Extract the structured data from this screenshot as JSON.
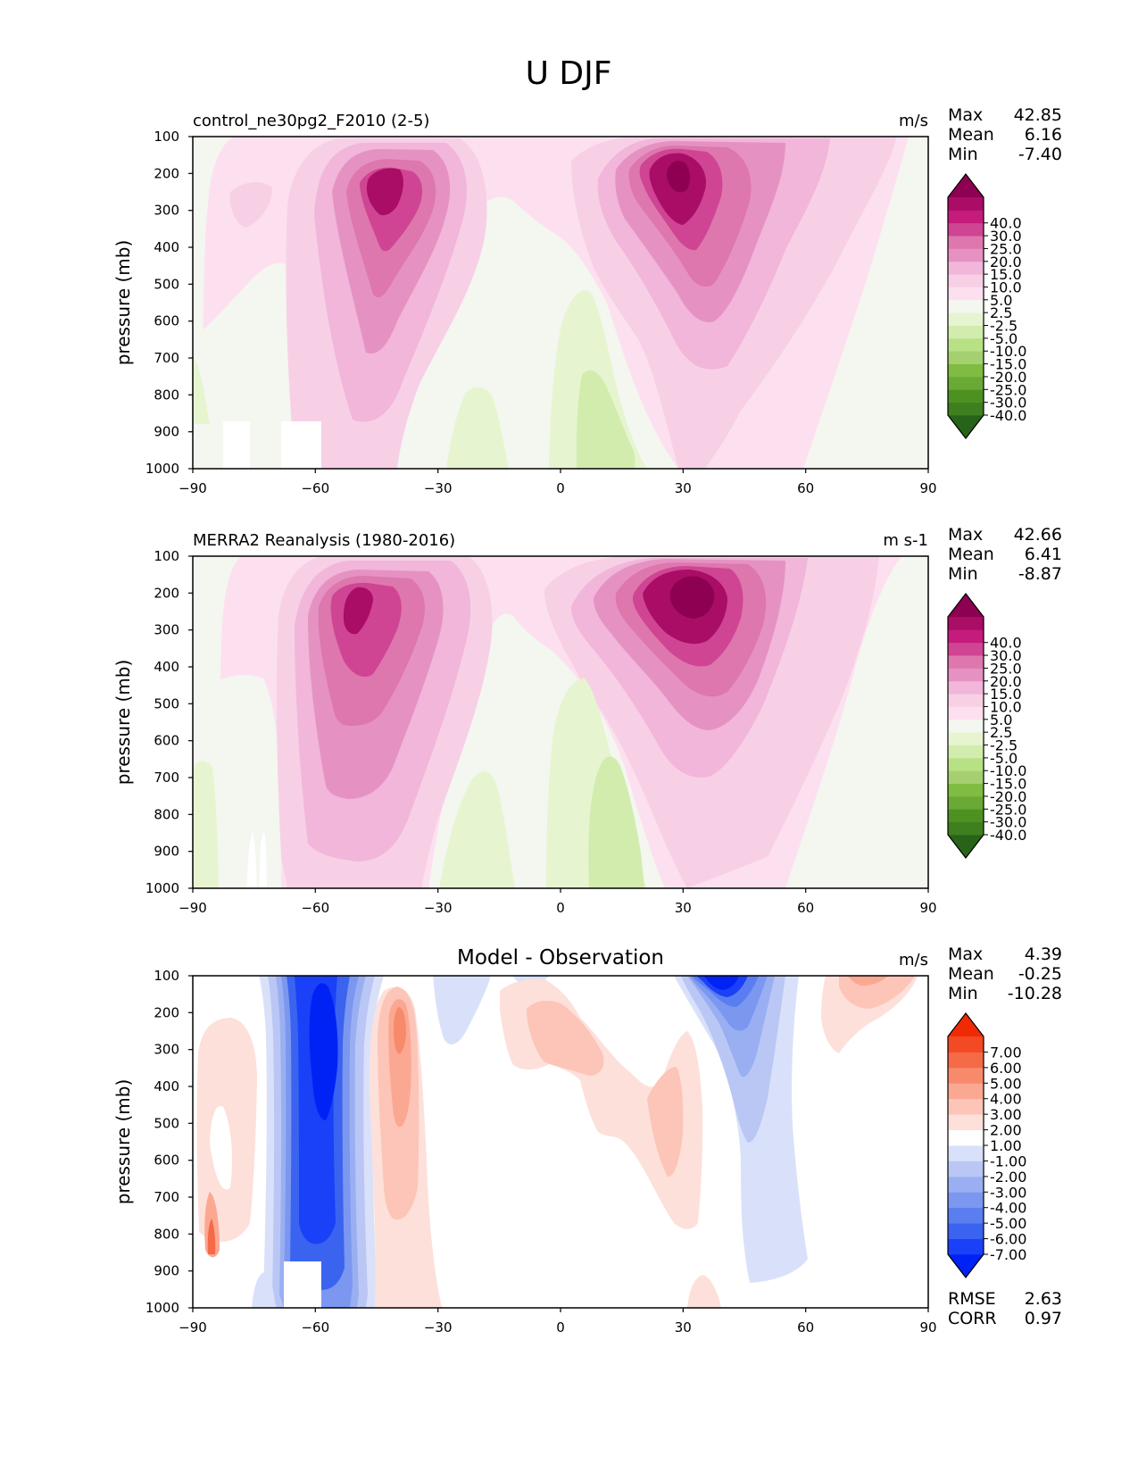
{
  "figure": {
    "title": "U DJF"
  },
  "chart_data": [
    {
      "type": "heatmap",
      "title": "control_ne30pg2_F2010 (2-5)",
      "units": "m/s",
      "ylabel": "pressure (mb)",
      "xlim": [
        -90,
        90
      ],
      "ylim": [
        1000,
        100
      ],
      "x_ticks": [
        "−90",
        "−60",
        "−30",
        "0",
        "30",
        "60",
        "90"
      ],
      "y_ticks": [
        "100",
        "200",
        "300",
        "400",
        "500",
        "600",
        "700",
        "800",
        "900",
        "1000"
      ],
      "stats": [
        {
          "label": "Max",
          "value": "42.85"
        },
        {
          "label": "Mean",
          "value": "6.16"
        },
        {
          "label": "Min",
          "value": "-7.40"
        }
      ],
      "colorbar": {
        "levels": [
          "-40.0",
          "-30.0",
          "-25.0",
          "-20.0",
          "-15.0",
          "-10.0",
          "-5.0",
          "-2.5",
          "2.5",
          "5.0",
          "10.0",
          "15.0",
          "20.0",
          "25.0",
          "30.0",
          "40.0"
        ],
        "colors": [
          "#276419",
          "#3f7f20",
          "#4d9221",
          "#6aa935",
          "#7fbc41",
          "#a5d06f",
          "#b8e186",
          "#d2ecad",
          "#e6f5d0",
          "#f4f6f0",
          "#fde0ef",
          "#f7d0e6",
          "#f1b6da",
          "#e592c3",
          "#de77ae",
          "#cf4593",
          "#c51b7d",
          "#a90d66",
          "#8e0152"
        ]
      }
    },
    {
      "type": "heatmap",
      "title": "MERRA2 Reanalysis (1980-2016)",
      "units": "m s-1",
      "ylabel": "pressure (mb)",
      "xlim": [
        -90,
        90
      ],
      "ylim": [
        1000,
        100
      ],
      "x_ticks": [
        "−90",
        "−60",
        "−30",
        "0",
        "30",
        "60",
        "90"
      ],
      "y_ticks": [
        "100",
        "200",
        "300",
        "400",
        "500",
        "600",
        "700",
        "800",
        "900",
        "1000"
      ],
      "stats": [
        {
          "label": "Max",
          "value": "42.66"
        },
        {
          "label": "Mean",
          "value": "6.41"
        },
        {
          "label": "Min",
          "value": "-8.87"
        }
      ],
      "colorbar": {
        "levels": [
          "-40.0",
          "-30.0",
          "-25.0",
          "-20.0",
          "-15.0",
          "-10.0",
          "-5.0",
          "-2.5",
          "2.5",
          "5.0",
          "10.0",
          "15.0",
          "20.0",
          "25.0",
          "30.0",
          "40.0"
        ],
        "colors": [
          "#276419",
          "#3f7f20",
          "#4d9221",
          "#6aa935",
          "#7fbc41",
          "#a5d06f",
          "#b8e186",
          "#d2ecad",
          "#e6f5d0",
          "#f4f6f0",
          "#fde0ef",
          "#f7d0e6",
          "#f1b6da",
          "#e592c3",
          "#de77ae",
          "#cf4593",
          "#c51b7d",
          "#a90d66",
          "#8e0152"
        ]
      }
    },
    {
      "type": "heatmap",
      "title": "Model - Observation",
      "units": "m/s",
      "ylabel": "pressure (mb)",
      "xlim": [
        -90,
        90
      ],
      "ylim": [
        1000,
        100
      ],
      "x_ticks": [
        "−90",
        "−60",
        "−30",
        "0",
        "30",
        "60",
        "90"
      ],
      "y_ticks": [
        "100",
        "200",
        "300",
        "400",
        "500",
        "600",
        "700",
        "800",
        "900",
        "1000"
      ],
      "stats": [
        {
          "label": "Max",
          "value": "4.39"
        },
        {
          "label": "Mean",
          "value": "-0.25"
        },
        {
          "label": "Min",
          "value": "-10.28"
        }
      ],
      "metrics": [
        {
          "label": "RMSE",
          "value": "2.63"
        },
        {
          "label": "CORR",
          "value": "0.97"
        }
      ],
      "colorbar": {
        "levels": [
          "-7.00",
          "-6.00",
          "-5.00",
          "-4.00",
          "-3.00",
          "-2.00",
          "-1.00",
          "1.00",
          "2.00",
          "3.00",
          "4.00",
          "5.00",
          "6.00",
          "7.00"
        ],
        "colors": [
          "#0022f5",
          "#1a40f8",
          "#3a63f0",
          "#5a7ef0",
          "#7b97f0",
          "#9aaff2",
          "#bac7f5",
          "#d9e1fa",
          "#ffffff",
          "#fde0da",
          "#fcc5b8",
          "#fba892",
          "#f88a6c",
          "#f56a47",
          "#f24a24",
          "#f02a05"
        ]
      }
    }
  ]
}
